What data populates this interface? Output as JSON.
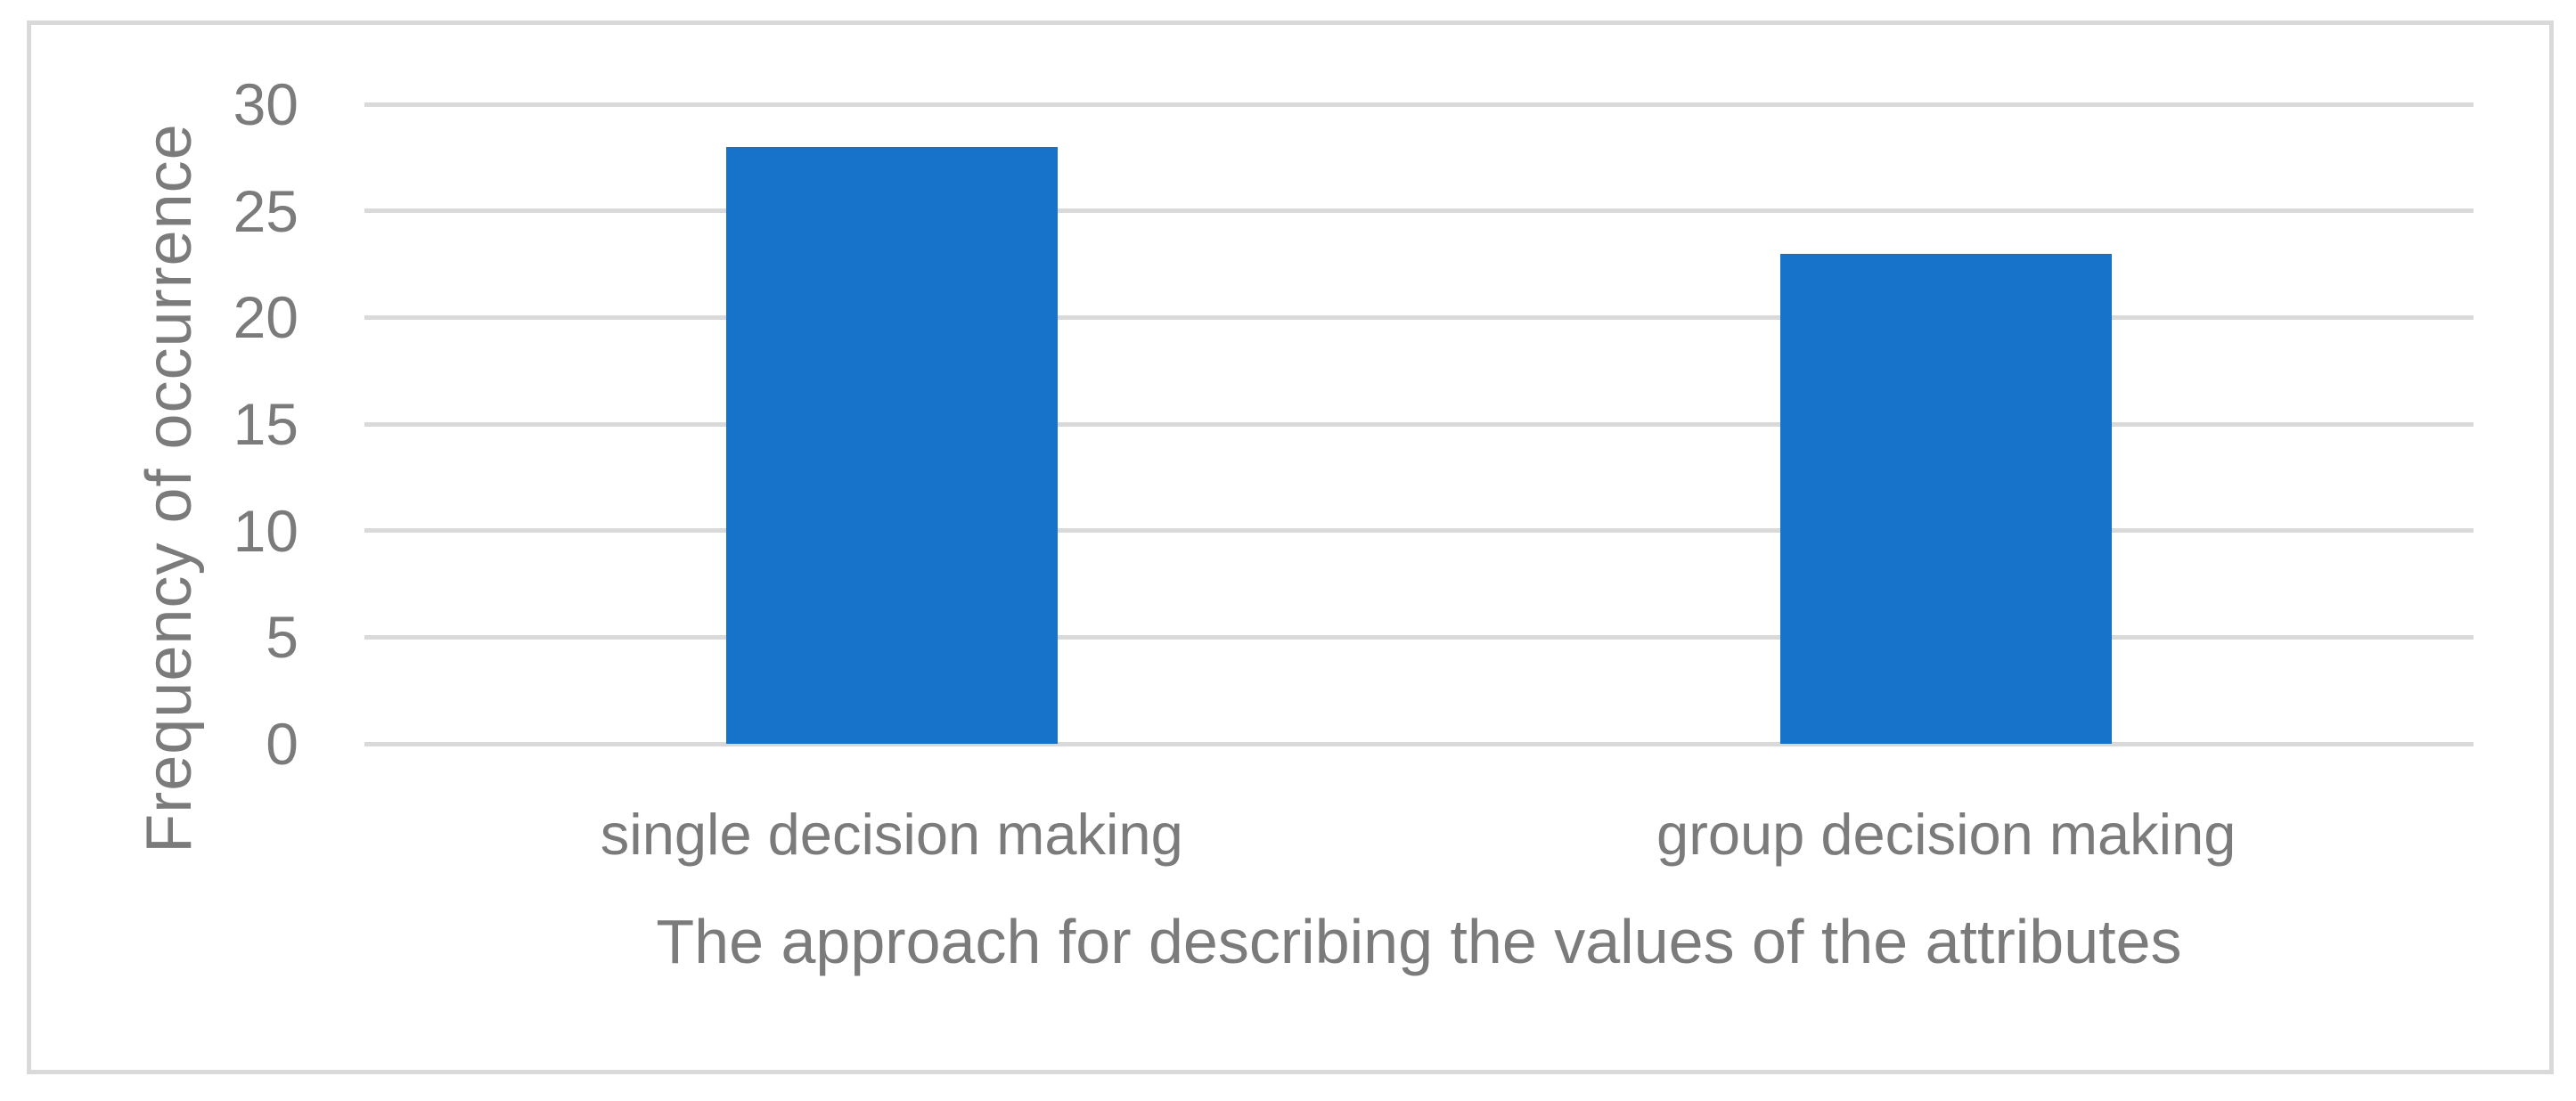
{
  "chart_data": {
    "type": "bar",
    "categories": [
      "single decision making",
      "group decision making"
    ],
    "values": [
      28,
      23
    ],
    "title": "",
    "xlabel": "The approach for describing the values of the attributes",
    "ylabel": "Frequency of occurrence",
    "ylim": [
      0,
      30
    ],
    "yticks": [
      0,
      5,
      10,
      15,
      20,
      25,
      30
    ],
    "grid": true,
    "legend_position": "none",
    "bar_color": "#1772C9",
    "gridline_color": "#D9D9D9",
    "frame_border_color": "#D9D9D9",
    "text_color": "#7B7B7B",
    "background_color": "#FFFFFF"
  }
}
